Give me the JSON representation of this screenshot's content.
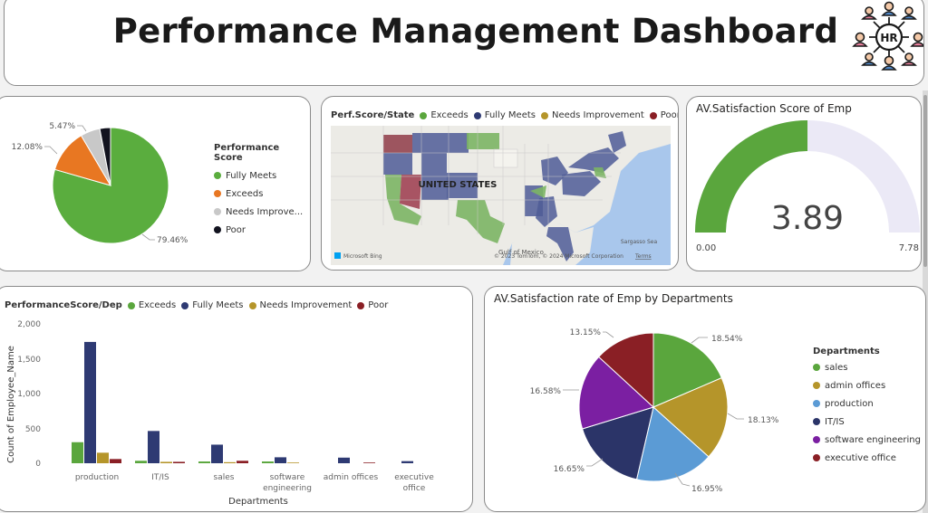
{
  "header": {
    "title": "Performance Management Dashboard",
    "logo_text": "HR",
    "logo_icon": "hr-people-network-icon"
  },
  "colors": {
    "fully_meets": "#2e3a73",
    "exceeds": "#5aa63d",
    "needs_improvement": "#b5952a",
    "poor": "#8a1f25",
    "pie_fully_meets": "#5aad3e",
    "pie_exceeds": "#e87722",
    "pie_needs_improvement": "#c8c8c8",
    "pie_poor": "#12131f",
    "gauge_fill": "#5aa63d",
    "gauge_track": "#ebe9f6"
  },
  "perf_pie": {
    "legend_title": "Performance Score",
    "legend": [
      "Fully Meets",
      "Exceeds",
      "Needs Improve...",
      "Poor"
    ],
    "labels": [
      "79.46%",
      "12.08%",
      "5.47%"
    ]
  },
  "map": {
    "title": "Perf.Score/State",
    "legend": [
      "Exceeds",
      "Fully Meets",
      "Needs Improvement",
      "Poor"
    ],
    "country_label": "UNITED STATES",
    "gulf_label": "Gulf of Mexico",
    "sea_label": "Sargasso Sea",
    "bing_label": "Microsoft Bing",
    "copyright": "© 2023 TomTom, © 2024 Microsoft Corporation",
    "terms": "Terms"
  },
  "gauge": {
    "title": "AV.Satisfaction Score of Emp",
    "value_label": "3.89",
    "min_label": "0.00",
    "max_label": "7.78"
  },
  "bar_chart": {
    "title": "PerformanceScore/Dep",
    "legend": [
      "Exceeds",
      "Fully Meets",
      "Needs Improvement",
      "Poor"
    ],
    "ylabel": "Count of Employee_Name",
    "xlabel": "Departments",
    "yticks": [
      "2,000",
      "1,500",
      "1,000",
      "500",
      "0"
    ],
    "categories": [
      "production",
      "IT/IS",
      "sales",
      "software engineering",
      "admin offices",
      "executive office"
    ]
  },
  "dept_pie": {
    "title": "AV.Satisfaction rate of Emp by Departments",
    "legend_title": "Departments",
    "legend": [
      "sales",
      "admin offices",
      "production",
      "IT/IS",
      "software engineering",
      "executive office"
    ],
    "labels": [
      "18.54%",
      "18.13%",
      "16.95%",
      "16.65%",
      "16.58%",
      "13.15%"
    ]
  },
  "chart_data": [
    {
      "type": "pie",
      "categories": [
        "Fully Meets",
        "Exceeds",
        "Needs Improvement",
        "Poor"
      ],
      "values": [
        79.46,
        12.08,
        5.47,
        2.99
      ]
    },
    {
      "type": "bar",
      "title": "PerformanceScore/Dep",
      "categories": [
        "production",
        "IT/IS",
        "sales",
        "software engineering",
        "admin offices",
        "executive office"
      ],
      "series": [
        {
          "name": "Exceeds",
          "values": [
            300,
            35,
            25,
            25,
            0,
            0
          ]
        },
        {
          "name": "Fully Meets",
          "values": [
            1730,
            460,
            265,
            85,
            80,
            30
          ]
        },
        {
          "name": "Needs Improvement",
          "values": [
            150,
            20,
            15,
            10,
            0,
            0
          ]
        },
        {
          "name": "Poor",
          "values": [
            60,
            20,
            35,
            0,
            10,
            0
          ]
        }
      ],
      "xlabel": "Departments",
      "ylabel": "Count of Employee_Name",
      "ylim": [
        0,
        2000
      ],
      "legend": "top"
    },
    {
      "type": "pie",
      "title": "AV.Satisfaction rate of Emp by Departments",
      "categories": [
        "sales",
        "admin offices",
        "production",
        "IT/IS",
        "software engineering",
        "executive office"
      ],
      "values": [
        18.54,
        18.13,
        16.95,
        16.65,
        16.58,
        13.15
      ]
    }
  ],
  "gauge_data": {
    "value": 3.89,
    "min": 0,
    "max": 7.78
  }
}
